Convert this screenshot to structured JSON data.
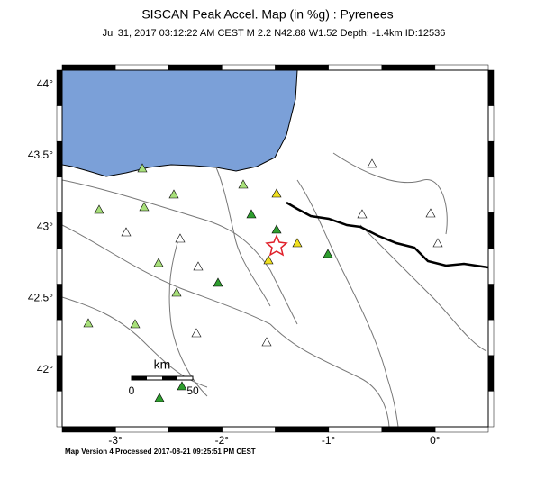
{
  "map": {
    "title": "SISCAN Peak Accel. Map (in %g) : Pyrenees",
    "subtitle": "Jul 31, 2017 03:12:22 AM CEST   M 2.2   N42.88 W1.52   Depth: -1.4km   ID:12536",
    "xlim": [
      -3.5,
      0.5
    ],
    "ylim": [
      41.6,
      44.1
    ],
    "xticks": [
      {
        "value": -3,
        "label": "-3°"
      },
      {
        "value": -2,
        "label": "-2°"
      },
      {
        "value": -1,
        "label": "-1°"
      },
      {
        "value": 0,
        "label": "0°"
      }
    ],
    "yticks": [
      {
        "value": 42,
        "label": "42°"
      },
      {
        "value": 42.5,
        "label": "42.5°"
      },
      {
        "value": 43,
        "label": "43°"
      },
      {
        "value": 43.5,
        "label": "43.5°"
      },
      {
        "value": 44,
        "label": "44°"
      }
    ],
    "scale_bar": {
      "unit": "km",
      "labels": [
        "0",
        "50"
      ]
    },
    "footer": "Map Version 4 Processed 2017-08-21 09:25:51 PM CEST"
  }
}
